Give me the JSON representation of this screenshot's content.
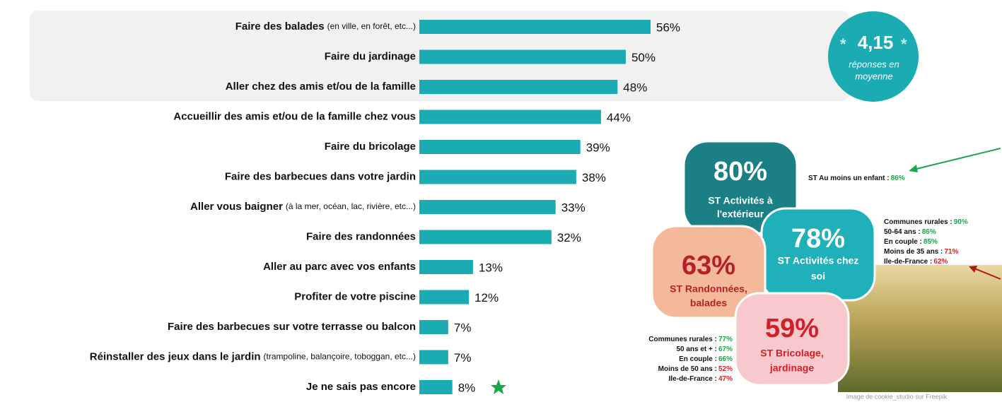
{
  "chart_data": {
    "type": "bar",
    "categories": [
      "Faire des balades",
      "Faire du jardinage",
      "Aller chez des amis et/ou de la famille",
      "Accueillir des amis et/ou de la famille chez vous",
      "Faire du bricolage",
      "Faire des barbecues dans votre jardin",
      "Aller vous baigner",
      "Faire des randonnées",
      "Aller au parc avec vos enfants",
      "Profiter de votre piscine",
      "Faire des barbecues sur votre terrasse ou balcon",
      "Réinstaller des jeux dans le jardin",
      "Je ne sais pas encore"
    ],
    "category_details": [
      "(en ville, en forêt, etc...)",
      null,
      null,
      null,
      null,
      null,
      "(à la mer, océan, lac, rivière, etc...)",
      null,
      null,
      null,
      null,
      "(trampoline, balançoire, toboggan, etc...)",
      null
    ],
    "values": [
      56,
      50,
      48,
      44,
      39,
      38,
      33,
      32,
      13,
      12,
      7,
      7,
      8
    ],
    "value_labels": [
      "56%",
      "50%",
      "48%",
      "44%",
      "39%",
      "38%",
      "33%",
      "32%",
      "13%",
      "12%",
      "7%",
      "7%",
      "8%"
    ],
    "color": "#1aabb3"
  },
  "badge": {
    "value": "4,15",
    "text": [
      "réponses en",
      "moyenne"
    ]
  },
  "bubbles": [
    {
      "value": "80%",
      "text": [
        "ST Activités à",
        "l'extérieur"
      ]
    },
    {
      "value": "78%",
      "text": [
        "ST Activités chez",
        "soi"
      ]
    },
    {
      "value": "63%",
      "text": [
        "ST Randonnées,",
        "balades"
      ]
    },
    {
      "value": "59%",
      "text": [
        "ST Bricolage,",
        "jardinage"
      ]
    }
  ],
  "notes_top": [
    {
      "label": "ST Au moins un enfant :",
      "value": "86%",
      "color": "#1aa64a"
    }
  ],
  "notes_right": [
    {
      "label": "Communes rurales :",
      "value": "90%",
      "color": "#1aa64a"
    },
    {
      "label": "50-64 ans :",
      "value": "86%",
      "color": "#1aa64a"
    },
    {
      "label": "En couple :",
      "value": "85%",
      "color": "#1aa64a"
    },
    {
      "label": "Moins de 35 ans :",
      "value": "71%",
      "color": "#e02020"
    },
    {
      "label": "Ile-de-France :",
      "value": "62%",
      "color": "#e02020"
    }
  ],
  "notes_left": [
    {
      "label": "Communes rurales :",
      "value": "77%",
      "color": "#1aa64a"
    },
    {
      "label": "50 ans et + :",
      "value": "67%",
      "color": "#1aa64a"
    },
    {
      "label": "En couple :",
      "value": "66%",
      "color": "#1aa64a"
    },
    {
      "label": "Moins de 50 ans :",
      "value": "52%",
      "color": "#e02020"
    },
    {
      "label": "Ile-de-France :",
      "value": "47%",
      "color": "#e02020"
    }
  ],
  "credit": "Image de cookie_studio sur Freepik"
}
